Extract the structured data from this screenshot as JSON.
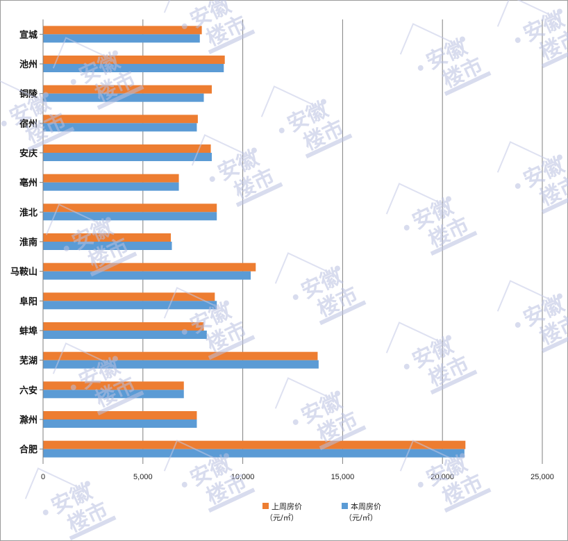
{
  "chart_data": {
    "type": "bar",
    "orientation": "horizontal",
    "categories": [
      "宣城",
      "池州",
      "铜陵",
      "宿州",
      "安庆",
      "亳州",
      "淮北",
      "淮南",
      "马鞍山",
      "阜阳",
      "蚌埠",
      "芜湖",
      "六安",
      "滁州",
      "合肥"
    ],
    "series": [
      {
        "name": "上周房价",
        "unit": "（元/㎡）",
        "color": "#ed7d31",
        "values": [
          7950,
          9100,
          8450,
          7750,
          8400,
          6800,
          8700,
          6400,
          10650,
          8600,
          8050,
          13750,
          7050,
          7700,
          21150
        ]
      },
      {
        "name": "本周房价",
        "unit": "（元/㎡）",
        "color": "#5b9bd5",
        "values": [
          7850,
          9050,
          8050,
          7700,
          8450,
          6800,
          8700,
          6450,
          10400,
          8700,
          8200,
          13800,
          7050,
          7700,
          21100
        ]
      }
    ],
    "xlim": [
      0,
      25000
    ],
    "xticks": [
      "0",
      "5,000",
      "10,000",
      "15,000",
      "20,000",
      "25,000"
    ],
    "xtick_values": [
      0,
      5000,
      10000,
      15000,
      20000,
      25000
    ],
    "grid": "vertical",
    "legend": "bottom"
  },
  "watermark": {
    "text_line1": "安徽",
    "text_line2": "楼市"
  }
}
